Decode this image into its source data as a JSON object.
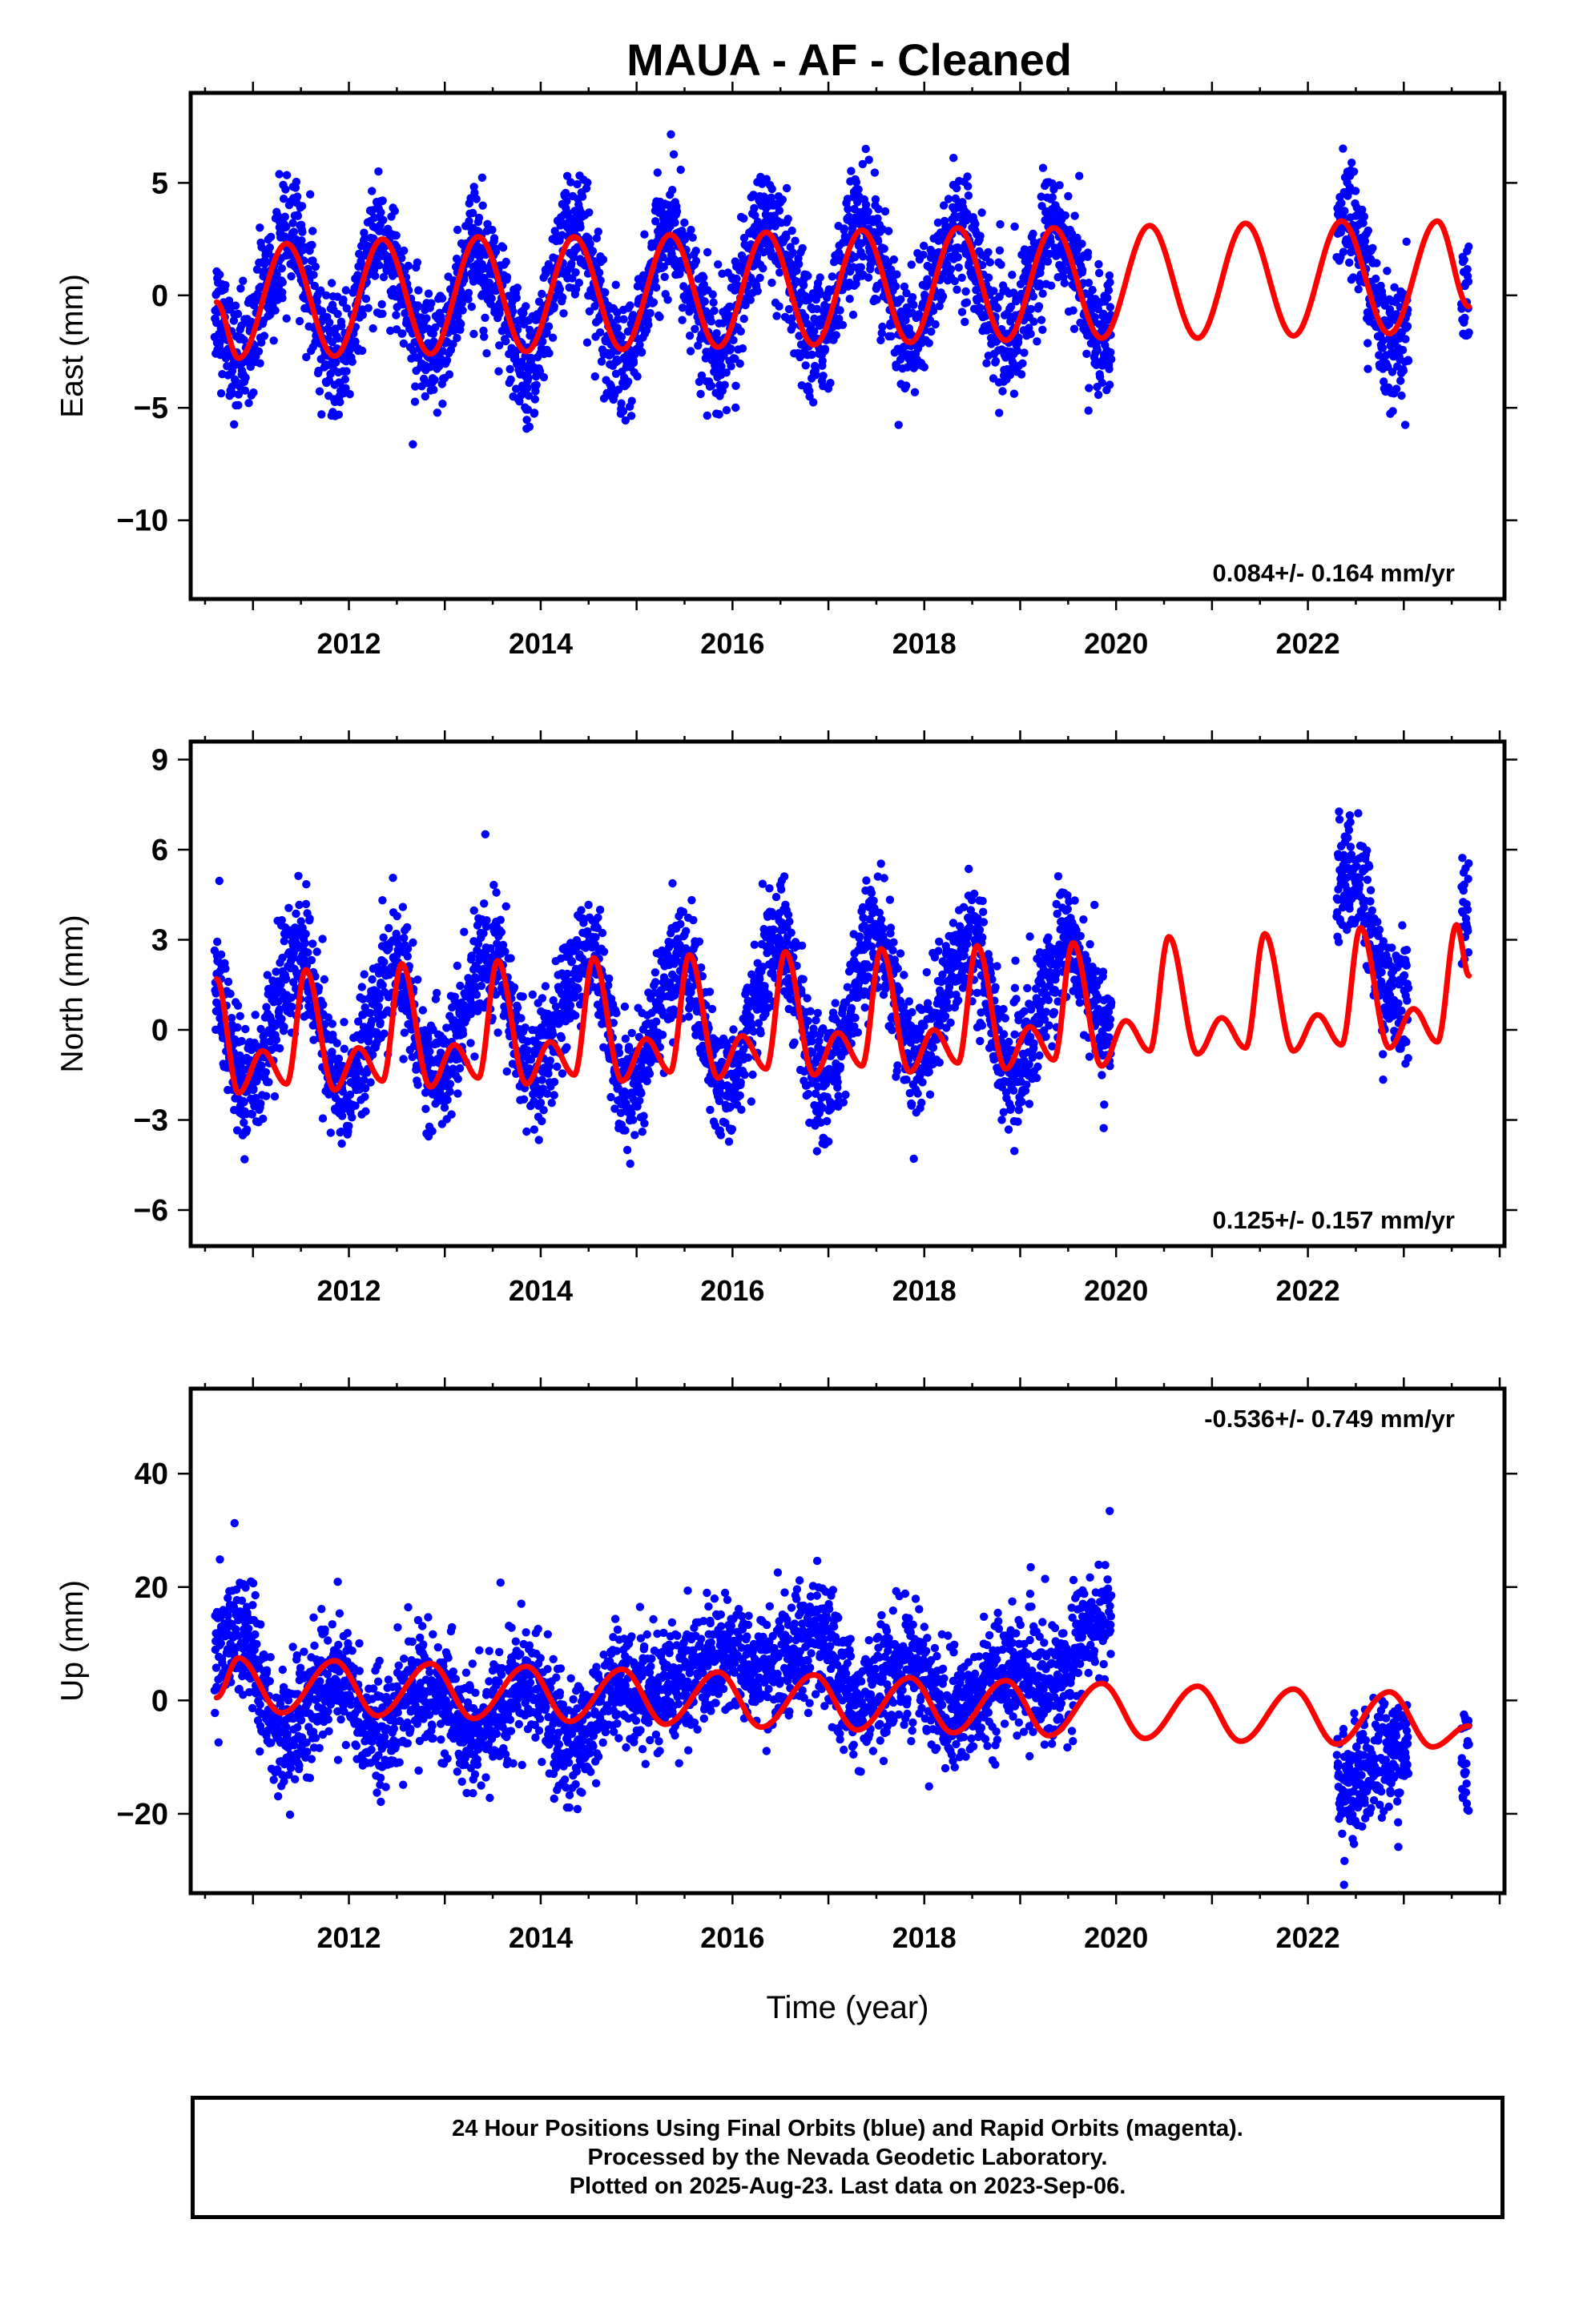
{
  "title": "MAUA  - AF - Cleaned",
  "footer": {
    "line1": "24 Hour Positions Using Final Orbits (blue) and Rapid Orbits (magenta).",
    "line2": "Processed by the Nevada Geodetic Laboratory.",
    "line3": "Plotted on 2025-Aug-23. Last data on 2023-Sep-06."
  },
  "colors": {
    "data": "#0000ff",
    "model": "#ff0000",
    "frame": "#000000"
  },
  "chart_data": [
    {
      "type": "scatter",
      "ylabel": "East (mm)",
      "xlabel": "",
      "xlim": [
        2010.35,
        2024.05
      ],
      "ylim": [
        -13.5,
        9.0
      ],
      "xticks": [
        2012,
        2014,
        2016,
        2018,
        2020,
        2022
      ],
      "yticks": [
        5,
        0,
        -5,
        -10
      ],
      "annotation": "0.084+/- 0.164 mm/yr",
      "annotation_position": "bottom-right",
      "data_segments": [
        [
          2010.6,
          2019.95
        ],
        [
          2022.3,
          2023.05
        ],
        [
          2023.6,
          2023.68
        ]
      ],
      "series": [
        {
          "name": "",
          "kind": "daily-positions",
          "x": [
            2010.6,
            2010.85,
            2011.15,
            2011.4,
            2011.85,
            2012.35,
            2012.85,
            2013.35,
            2013.85,
            2014.35,
            2014.85,
            2015.35,
            2015.85,
            2016.35,
            2016.85,
            2017.35,
            2017.85,
            2018.35,
            2018.85,
            2019.35,
            2019.9,
            2022.4,
            2022.85,
            2023.65
          ],
          "y": [
            -0.5,
            -3.0,
            0.5,
            2.5,
            -3.0,
            2.5,
            -3.0,
            2.2,
            -3.0,
            2.8,
            -3.0,
            2.8,
            -2.5,
            3.0,
            -2.0,
            3.0,
            -2.0,
            3.0,
            -2.0,
            3.0,
            -2.0,
            3.5,
            -2.0,
            0.0
          ]
        },
        {
          "name": "",
          "kind": "model",
          "x": [
            2010.62,
            2010.85,
            2011.35,
            2011.85,
            2012.35,
            2012.85,
            2013.35,
            2013.85,
            2014.35,
            2014.85,
            2015.35,
            2015.85,
            2016.35,
            2016.85,
            2017.35,
            2017.85,
            2018.35,
            2018.85,
            2019.35,
            2019.85,
            2020.35,
            2020.85,
            2021.35,
            2021.85,
            2022.35,
            2022.85,
            2023.35,
            2023.68
          ],
          "y": [
            -0.3,
            -2.8,
            2.3,
            -2.7,
            2.5,
            -2.6,
            2.6,
            -2.5,
            2.6,
            -2.4,
            2.7,
            -2.3,
            2.8,
            -2.2,
            2.9,
            -2.1,
            3.0,
            -2.0,
            3.0,
            -1.9,
            3.1,
            -1.9,
            3.2,
            -1.8,
            3.3,
            -1.7,
            3.3,
            -0.5
          ]
        }
      ]
    },
    {
      "type": "scatter",
      "ylabel": "North (mm)",
      "xlabel": "",
      "xlim": [
        2010.35,
        2024.05
      ],
      "ylim": [
        -7.2,
        9.6
      ],
      "xticks": [
        2012,
        2014,
        2016,
        2018,
        2020,
        2022
      ],
      "yticks": [
        9,
        6,
        3,
        0,
        -3,
        -6
      ],
      "annotation": "0.125+/- 0.157 mm/yr",
      "annotation_position": "bottom-right",
      "data_segments": [
        [
          2010.6,
          2019.95
        ],
        [
          2022.3,
          2023.05
        ],
        [
          2023.6,
          2023.68
        ]
      ],
      "series": [
        {
          "name": "",
          "kind": "daily-positions",
          "x": [
            2010.6,
            2010.9,
            2011.5,
            2011.9,
            2012.5,
            2012.9,
            2013.5,
            2013.9,
            2014.5,
            2014.9,
            2015.5,
            2015.9,
            2016.5,
            2016.9,
            2017.5,
            2017.9,
            2018.5,
            2018.9,
            2019.5,
            2019.9,
            2022.5,
            2022.85,
            2023.65
          ],
          "y": [
            1.5,
            -2.0,
            2.5,
            -2.0,
            2.0,
            -1.5,
            2.5,
            -1.5,
            2.5,
            -2.0,
            2.5,
            -2.0,
            3.0,
            -2.0,
            3.0,
            -1.0,
            3.0,
            -1.5,
            3.0,
            0.0,
            5.0,
            1.0,
            4.0
          ]
        },
        {
          "name": "",
          "kind": "model",
          "x": [
            2010.62,
            2010.85,
            2011.1,
            2011.35,
            2011.55,
            2011.85,
            2012.1,
            2012.35,
            2012.55,
            2012.85,
            2013.1,
            2013.35,
            2013.55,
            2013.85,
            2014.1,
            2014.35,
            2014.55,
            2014.85,
            2015.1,
            2015.35,
            2015.55,
            2015.85,
            2016.1,
            2016.35,
            2016.55,
            2016.85,
            2017.1,
            2017.35,
            2017.55,
            2017.85,
            2018.1,
            2018.35,
            2018.55,
            2018.85,
            2019.1,
            2019.35,
            2019.55,
            2019.85,
            2020.1,
            2020.35,
            2020.55,
            2020.85,
            2021.1,
            2021.35,
            2021.55,
            2021.85,
            2022.1,
            2022.35,
            2022.55,
            2022.85,
            2023.1,
            2023.35,
            2023.55,
            2023.68
          ],
          "y": [
            1.7,
            -2.1,
            -0.7,
            -1.8,
            2.0,
            -2.0,
            -0.6,
            -1.7,
            2.2,
            -1.9,
            -0.5,
            -1.6,
            2.3,
            -1.8,
            -0.4,
            -1.5,
            2.4,
            -1.7,
            -0.3,
            -1.4,
            2.5,
            -1.6,
            -0.2,
            -1.3,
            2.6,
            -1.5,
            -0.1,
            -1.2,
            2.7,
            -1.4,
            0.0,
            -1.1,
            2.8,
            -1.3,
            0.1,
            -1.0,
            2.9,
            -1.2,
            0.3,
            -0.7,
            3.1,
            -0.8,
            0.4,
            -0.6,
            3.2,
            -0.7,
            0.5,
            -0.5,
            3.4,
            -0.6,
            0.7,
            -0.4,
            3.5,
            1.8
          ]
        }
      ]
    },
    {
      "type": "scatter",
      "ylabel": "Up (mm)",
      "xlabel": "Time (year)",
      "xlim": [
        2010.35,
        2024.05
      ],
      "ylim": [
        -34.0,
        55.0
      ],
      "xticks": [
        2012,
        2014,
        2016,
        2018,
        2020,
        2022
      ],
      "yticks": [
        40,
        20,
        0,
        -20
      ],
      "annotation": "-0.536+/- 0.749 mm/yr",
      "annotation_position": "top-right",
      "data_segments": [
        [
          2010.6,
          2019.95
        ],
        [
          2022.3,
          2023.05
        ],
        [
          2023.6,
          2023.68
        ]
      ],
      "series": [
        {
          "name": "",
          "kind": "daily-positions",
          "x": [
            2010.6,
            2010.85,
            2011.3,
            2011.85,
            2012.3,
            2012.85,
            2013.3,
            2013.85,
            2014.3,
            2014.85,
            2015.3,
            2015.85,
            2016.3,
            2016.85,
            2017.3,
            2017.85,
            2018.3,
            2018.85,
            2019.3,
            2019.85,
            2022.4,
            2022.85,
            2023.65
          ],
          "y": [
            8.0,
            12.0,
            -6.0,
            4.0,
            -5.0,
            3.0,
            -6.0,
            3.0,
            -8.0,
            2.0,
            2.0,
            8.0,
            6.0,
            10.0,
            0.0,
            6.0,
            -3.0,
            5.0,
            3.0,
            15.0,
            -15.0,
            -10.0,
            -10.0
          ]
        },
        {
          "name": "",
          "kind": "model",
          "x": [
            2010.62,
            2010.85,
            2011.3,
            2011.85,
            2012.3,
            2012.85,
            2013.3,
            2013.85,
            2014.3,
            2014.85,
            2015.3,
            2015.85,
            2016.3,
            2016.85,
            2017.3,
            2017.85,
            2018.3,
            2018.85,
            2019.3,
            2019.85,
            2020.3,
            2020.85,
            2021.3,
            2021.85,
            2022.3,
            2022.85,
            2023.3,
            2023.68
          ],
          "y": [
            0.5,
            7.5,
            -2.2,
            7.0,
            -2.7,
            6.5,
            -3.2,
            6.0,
            -3.7,
            5.5,
            -4.2,
            5.0,
            -4.7,
            4.5,
            -5.2,
            4.0,
            -5.7,
            3.5,
            -6.2,
            3.0,
            -6.7,
            2.5,
            -7.2,
            2.0,
            -7.7,
            1.5,
            -8.2,
            -4.5
          ]
        }
      ]
    }
  ]
}
